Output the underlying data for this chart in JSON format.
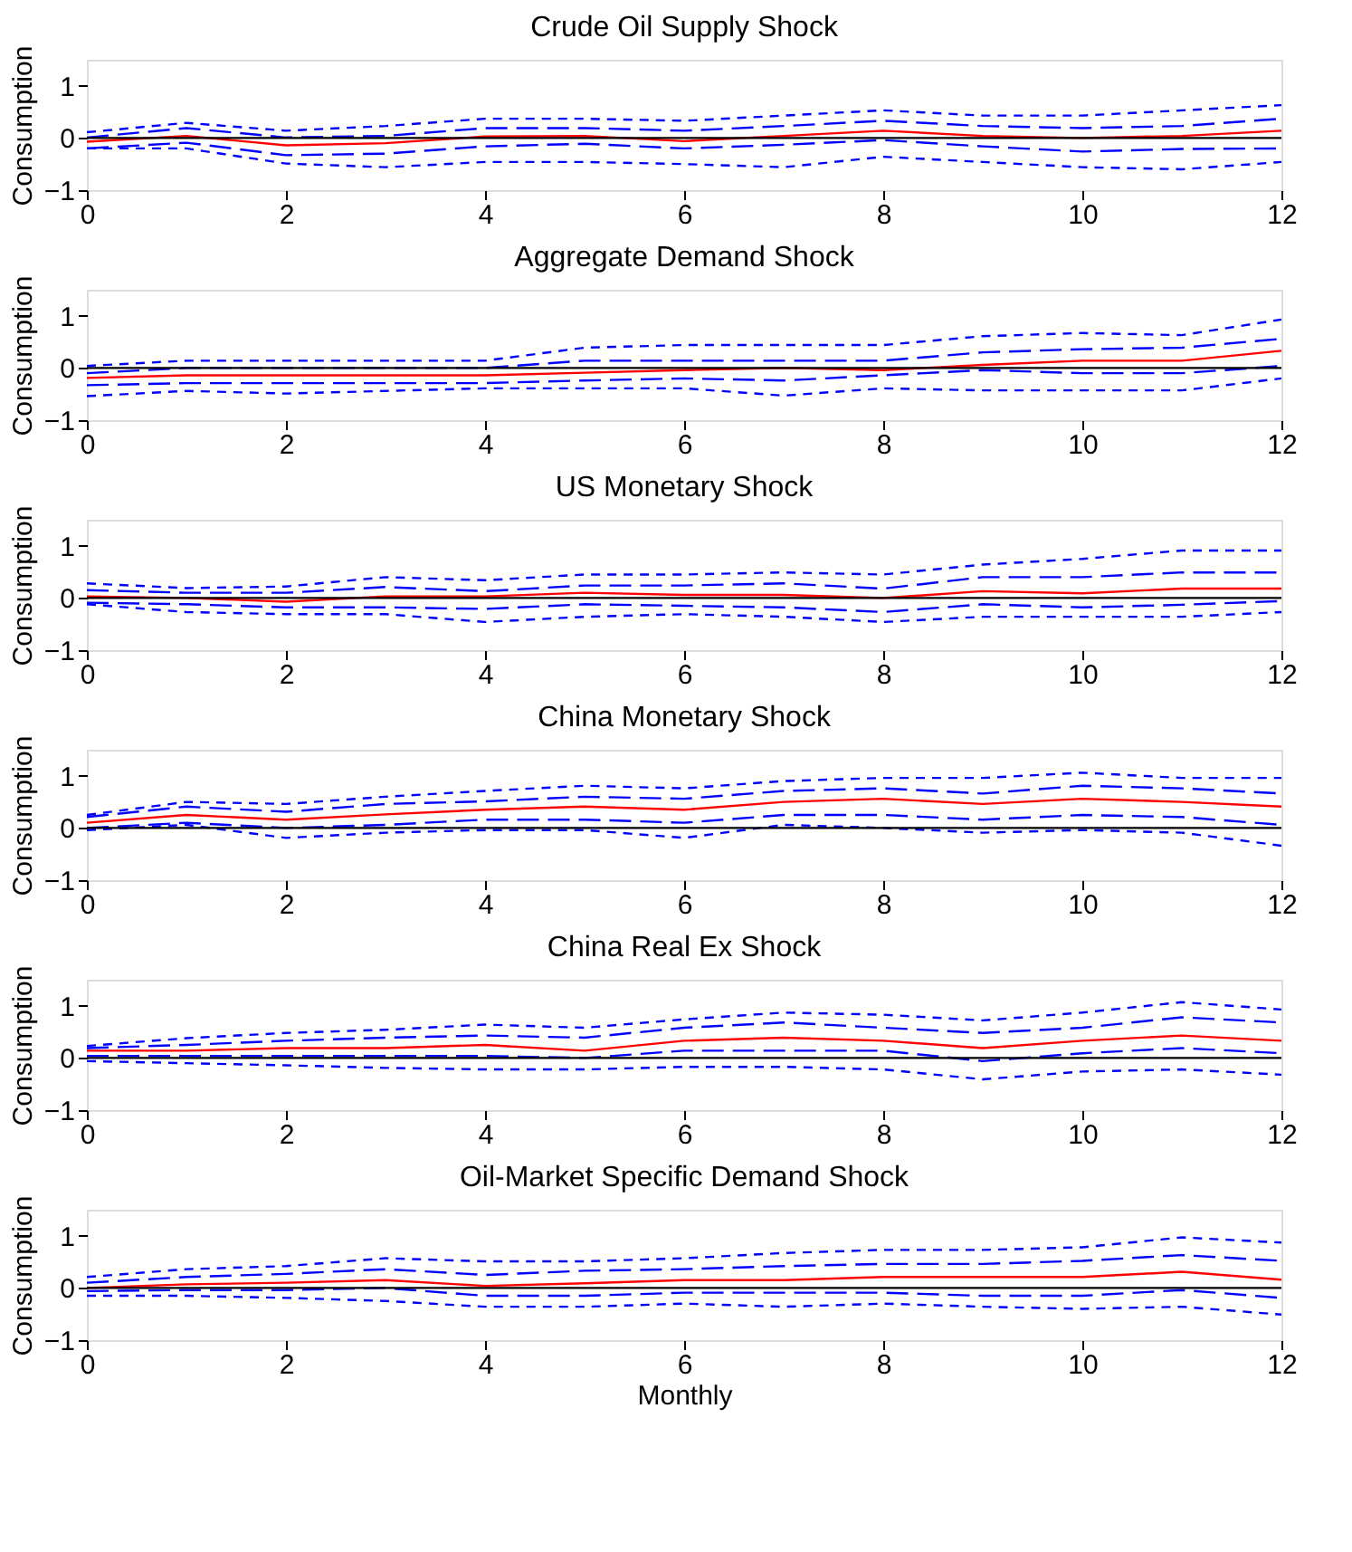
{
  "chart_data": [
    {
      "type": "line",
      "title": "Crude Oil Supply Shock",
      "ylabel": "Consumption",
      "x": [
        0,
        1,
        2,
        3,
        4,
        5,
        6,
        7,
        8,
        9,
        10,
        11,
        12
      ],
      "xlim": [
        0,
        12
      ],
      "xticks": [
        0,
        2,
        4,
        6,
        8,
        10,
        12
      ],
      "ylim": [
        -1,
        1.5
      ],
      "yticks": [
        -1,
        0,
        1
      ],
      "grid": false,
      "legend": false,
      "marker": "none",
      "ref_lines": [
        {
          "axis": "y",
          "value": 0,
          "color": "#000000"
        }
      ],
      "series": [
        {
          "color": "#ff0000",
          "line_style": "solid",
          "values": [
            -0.07,
            0.04,
            -0.14,
            -0.1,
            0.03,
            0.04,
            -0.06,
            0.04,
            0.14,
            0.04,
            0,
            0.04,
            0.14
          ]
        },
        {
          "color": "#0000ff",
          "line_style": "dashed",
          "values": [
            0.01,
            0.19,
            0.01,
            0.04,
            0.19,
            0.19,
            0.14,
            0.23,
            0.33,
            0.23,
            0.19,
            0.23,
            0.37
          ]
        },
        {
          "color": "#0000ff",
          "line_style": "dashed",
          "values": [
            -0.2,
            -0.09,
            -0.33,
            -0.3,
            -0.16,
            -0.11,
            -0.2,
            -0.13,
            -0.04,
            -0.16,
            -0.26,
            -0.21,
            -0.2
          ]
        },
        {
          "color": "#0000ff",
          "line_style": "dotted",
          "values": [
            0.11,
            0.29,
            0.14,
            0.23,
            0.37,
            0.37,
            0.33,
            0.43,
            0.53,
            0.43,
            0.43,
            0.53,
            0.63
          ]
        },
        {
          "color": "#0000ff",
          "line_style": "dotted",
          "values": [
            -0.2,
            -0.2,
            -0.49,
            -0.56,
            -0.46,
            -0.46,
            -0.5,
            -0.56,
            -0.36,
            -0.46,
            -0.56,
            -0.6,
            -0.46
          ]
        }
      ]
    },
    {
      "type": "line",
      "title": "Aggregate Demand Shock",
      "ylabel": "Consumption",
      "x": [
        0,
        1,
        2,
        3,
        4,
        5,
        6,
        7,
        8,
        9,
        10,
        11,
        12
      ],
      "xlim": [
        0,
        12
      ],
      "xticks": [
        0,
        2,
        4,
        6,
        8,
        10,
        12
      ],
      "ylim": [
        -1,
        1.5
      ],
      "yticks": [
        -1,
        0,
        1
      ],
      "grid": false,
      "legend": false,
      "marker": "none",
      "ref_lines": [
        {
          "axis": "y",
          "value": 0,
          "color": "#000000"
        }
      ],
      "series": [
        {
          "color": "#ff0000",
          "line_style": "solid",
          "values": [
            -0.19,
            -0.14,
            -0.14,
            -0.14,
            -0.14,
            -0.09,
            -0.04,
            0,
            -0.04,
            0.06,
            0.14,
            0.14,
            0.33
          ]
        },
        {
          "color": "#0000ff",
          "line_style": "dashed",
          "values": [
            -0.1,
            0,
            0,
            0,
            0,
            0.14,
            0.14,
            0.14,
            0.14,
            0.3,
            0.36,
            0.39,
            0.56
          ]
        },
        {
          "color": "#0000ff",
          "line_style": "dashed",
          "values": [
            -0.33,
            -0.29,
            -0.29,
            -0.29,
            -0.29,
            -0.24,
            -0.2,
            -0.24,
            -0.14,
            -0.04,
            -0.1,
            -0.1,
            0.04
          ]
        },
        {
          "color": "#0000ff",
          "line_style": "dotted",
          "values": [
            0.04,
            0.14,
            0.14,
            0.14,
            0.14,
            0.39,
            0.44,
            0.44,
            0.44,
            0.61,
            0.67,
            0.63,
            0.93
          ]
        },
        {
          "color": "#0000ff",
          "line_style": "dotted",
          "values": [
            -0.54,
            -0.44,
            -0.49,
            -0.44,
            -0.39,
            -0.39,
            -0.39,
            -0.53,
            -0.39,
            -0.43,
            -0.43,
            -0.43,
            -0.2
          ]
        }
      ]
    },
    {
      "type": "line",
      "title": "US Monetary Shock",
      "ylabel": "Consumption",
      "x": [
        0,
        1,
        2,
        3,
        4,
        5,
        6,
        7,
        8,
        9,
        10,
        11,
        12
      ],
      "xlim": [
        0,
        12
      ],
      "xticks": [
        0,
        2,
        4,
        6,
        8,
        10,
        12
      ],
      "ylim": [
        -1,
        1.5
      ],
      "yticks": [
        -1,
        0,
        1
      ],
      "grid": false,
      "legend": false,
      "marker": "none",
      "ref_lines": [
        {
          "axis": "y",
          "value": 0,
          "color": "#000000"
        }
      ],
      "series": [
        {
          "color": "#ff0000",
          "line_style": "solid",
          "values": [
            0.03,
            0,
            -0.07,
            0.03,
            0.03,
            0.1,
            0.06,
            0.06,
            0,
            0.13,
            0.09,
            0.18,
            0.18
          ]
        },
        {
          "color": "#0000ff",
          "line_style": "dashed",
          "values": [
            0.15,
            0.1,
            0.1,
            0.21,
            0.13,
            0.24,
            0.24,
            0.28,
            0.18,
            0.4,
            0.4,
            0.49,
            0.49
          ]
        },
        {
          "color": "#0000ff",
          "line_style": "dashed",
          "values": [
            -0.09,
            -0.12,
            -0.18,
            -0.18,
            -0.21,
            -0.12,
            -0.15,
            -0.18,
            -0.27,
            -0.12,
            -0.18,
            -0.13,
            -0.06
          ]
        },
        {
          "color": "#0000ff",
          "line_style": "dotted",
          "values": [
            0.28,
            0.19,
            0.22,
            0.4,
            0.34,
            0.45,
            0.45,
            0.49,
            0.45,
            0.64,
            0.75,
            0.91,
            0.91
          ]
        },
        {
          "color": "#0000ff",
          "line_style": "dotted",
          "values": [
            -0.12,
            -0.27,
            -0.31,
            -0.31,
            -0.46,
            -0.36,
            -0.31,
            -0.36,
            -0.46,
            -0.36,
            -0.36,
            -0.36,
            -0.27
          ]
        }
      ]
    },
    {
      "type": "line",
      "title": "China Monetary Shock",
      "ylabel": "Consumption",
      "x": [
        0,
        1,
        2,
        3,
        4,
        5,
        6,
        7,
        8,
        9,
        10,
        11,
        12
      ],
      "xlim": [
        0,
        12
      ],
      "xticks": [
        0,
        2,
        4,
        6,
        8,
        10,
        12
      ],
      "ylim": [
        -1,
        1.5
      ],
      "yticks": [
        -1,
        0,
        1
      ],
      "grid": false,
      "legend": false,
      "marker": "none",
      "ref_lines": [
        {
          "axis": "y",
          "value": 0,
          "color": "#000000"
        }
      ],
      "series": [
        {
          "color": "#ff0000",
          "line_style": "solid",
          "values": [
            0.1,
            0.25,
            0.16,
            0.26,
            0.35,
            0.41,
            0.35,
            0.5,
            0.56,
            0.46,
            0.56,
            0.5,
            0.41
          ]
        },
        {
          "color": "#0000ff",
          "line_style": "dashed",
          "values": [
            0.21,
            0.41,
            0.31,
            0.46,
            0.51,
            0.6,
            0.56,
            0.71,
            0.76,
            0.66,
            0.81,
            0.76,
            0.66
          ]
        },
        {
          "color": "#0000ff",
          "line_style": "dashed",
          "values": [
            0,
            0.1,
            0,
            0.06,
            0.16,
            0.16,
            0.1,
            0.25,
            0.25,
            0.16,
            0.25,
            0.21,
            0.06
          ]
        },
        {
          "color": "#0000ff",
          "line_style": "dotted",
          "values": [
            0.25,
            0.5,
            0.46,
            0.6,
            0.71,
            0.81,
            0.76,
            0.9,
            0.96,
            0.96,
            1.06,
            0.96,
            0.96
          ]
        },
        {
          "color": "#0000ff",
          "line_style": "dotted",
          "values": [
            -0.04,
            0.06,
            -0.19,
            -0.09,
            -0.04,
            -0.04,
            -0.19,
            0.06,
            0,
            -0.09,
            -0.04,
            -0.09,
            -0.34
          ]
        }
      ]
    },
    {
      "type": "line",
      "title": "China Real Ex Shock",
      "ylabel": "Consumption",
      "x": [
        0,
        1,
        2,
        3,
        4,
        5,
        6,
        7,
        8,
        9,
        10,
        11,
        12
      ],
      "xlim": [
        0,
        12
      ],
      "xticks": [
        0,
        2,
        4,
        6,
        8,
        10,
        12
      ],
      "ylim": [
        -1,
        1.5
      ],
      "yticks": [
        -1,
        0,
        1
      ],
      "grid": false,
      "legend": false,
      "marker": "none",
      "ref_lines": [
        {
          "axis": "y",
          "value": 0,
          "color": "#000000"
        }
      ],
      "series": [
        {
          "color": "#ff0000",
          "line_style": "solid",
          "values": [
            0.14,
            0.14,
            0.19,
            0.19,
            0.25,
            0.14,
            0.33,
            0.39,
            0.33,
            0.19,
            0.33,
            0.43,
            0.33
          ]
        },
        {
          "color": "#0000ff",
          "line_style": "dashed",
          "values": [
            0.19,
            0.25,
            0.33,
            0.39,
            0.43,
            0.39,
            0.58,
            0.68,
            0.58,
            0.48,
            0.58,
            0.78,
            0.68
          ]
        },
        {
          "color": "#0000ff",
          "line_style": "dashed",
          "values": [
            0.04,
            0.04,
            0.04,
            0.04,
            0.04,
            0,
            0.14,
            0.14,
            0.14,
            -0.06,
            0.09,
            0.19,
            0.09
          ]
        },
        {
          "color": "#0000ff",
          "line_style": "dotted",
          "values": [
            0.23,
            0.38,
            0.48,
            0.54,
            0.64,
            0.58,
            0.74,
            0.87,
            0.83,
            0.72,
            0.87,
            1.07,
            0.93
          ]
        },
        {
          "color": "#0000ff",
          "line_style": "dotted",
          "values": [
            -0.06,
            -0.1,
            -0.14,
            -0.19,
            -0.22,
            -0.22,
            -0.17,
            -0.17,
            -0.22,
            -0.41,
            -0.26,
            -0.22,
            -0.32
          ]
        }
      ]
    },
    {
      "type": "line",
      "title": "Oil-Market Specific Demand Shock",
      "ylabel": "Consumption",
      "xlabel": "Monthly",
      "x": [
        0,
        1,
        2,
        3,
        4,
        5,
        6,
        7,
        8,
        9,
        10,
        11,
        12
      ],
      "xlim": [
        0,
        12
      ],
      "xticks": [
        0,
        2,
        4,
        6,
        8,
        10,
        12
      ],
      "ylim": [
        -1,
        1.5
      ],
      "yticks": [
        -1,
        0,
        1
      ],
      "grid": false,
      "legend": false,
      "marker": "none",
      "ref_lines": [
        {
          "axis": "y",
          "value": 0,
          "color": "#000000"
        }
      ],
      "series": [
        {
          "color": "#ff0000",
          "line_style": "solid",
          "values": [
            0,
            0.07,
            0.1,
            0.15,
            0.04,
            0.09,
            0.15,
            0.15,
            0.21,
            0.21,
            0.21,
            0.31,
            0.16
          ]
        },
        {
          "color": "#0000ff",
          "line_style": "dashed",
          "values": [
            0.1,
            0.21,
            0.27,
            0.36,
            0.25,
            0.33,
            0.36,
            0.42,
            0.46,
            0.46,
            0.52,
            0.63,
            0.52
          ]
        },
        {
          "color": "#0000ff",
          "line_style": "dashed",
          "values": [
            -0.06,
            -0.04,
            -0.04,
            0,
            -0.15,
            -0.15,
            -0.09,
            -0.09,
            -0.09,
            -0.15,
            -0.15,
            -0.04,
            -0.19
          ]
        },
        {
          "color": "#0000ff",
          "line_style": "dotted",
          "values": [
            0.21,
            0.36,
            0.42,
            0.57,
            0.51,
            0.51,
            0.57,
            0.67,
            0.73,
            0.73,
            0.78,
            0.97,
            0.87
          ]
        },
        {
          "color": "#0000ff",
          "line_style": "dotted",
          "values": [
            -0.15,
            -0.15,
            -0.19,
            -0.25,
            -0.36,
            -0.36,
            -0.3,
            -0.36,
            -0.3,
            -0.36,
            -0.4,
            -0.36,
            -0.51
          ]
        }
      ]
    }
  ]
}
